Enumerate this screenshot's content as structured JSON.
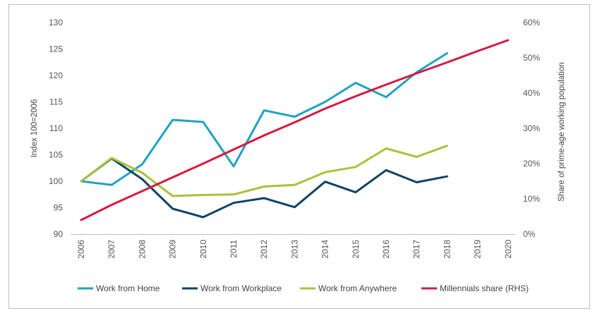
{
  "chart_data": {
    "type": "line",
    "x": [
      "2006",
      "2007",
      "2008",
      "2009",
      "2010",
      "2011",
      "2012",
      "2013",
      "2014",
      "2015",
      "2016",
      "2017",
      "2018",
      "2019",
      "2020"
    ],
    "ylabel_left": "Index 100=2006",
    "ylabel_right": "Share of prime-age working population",
    "ylim_left": [
      90,
      130
    ],
    "yticks_left": [
      "90",
      "95",
      "100",
      "105",
      "110",
      "115",
      "120",
      "125",
      "130"
    ],
    "ylim_right": [
      0,
      60
    ],
    "yticks_right": [
      "0%",
      "10%",
      "20%",
      "30%",
      "40%",
      "50%",
      "60%"
    ],
    "grid": false,
    "legend_position": "bottom",
    "series": [
      {
        "name": "Work from Home",
        "axis": "left",
        "color": "#1fa3c2",
        "values": [
          100,
          99.3,
          103.2,
          111.6,
          111.2,
          102.8,
          113.4,
          112.2,
          115.0,
          118.6,
          115.9,
          120.6,
          124.2,
          null,
          null
        ]
      },
      {
        "name": "Work from Workplace",
        "axis": "left",
        "color": "#0e4466",
        "values": [
          100,
          104.3,
          100.4,
          94.8,
          93.2,
          95.9,
          96.8,
          95.1,
          99.9,
          97.9,
          102.1,
          99.8,
          100.9,
          null,
          null
        ]
      },
      {
        "name": "Work from Anywhere",
        "axis": "left",
        "color": "#a9c23a",
        "values": [
          100,
          104.4,
          101.6,
          97.2,
          97.4,
          97.5,
          99.0,
          99.3,
          101.7,
          102.7,
          106.2,
          104.6,
          106.7,
          null,
          null
        ]
      },
      {
        "name": "Millennials share (RHS)",
        "axis": "right",
        "color": "#d7193f",
        "values": [
          4,
          8.3,
          12.2,
          16.1,
          20.0,
          24.0,
          28.0,
          31.7,
          35.6,
          39.1,
          42.4,
          45.6,
          48.7,
          51.9,
          55.0
        ]
      }
    ]
  }
}
